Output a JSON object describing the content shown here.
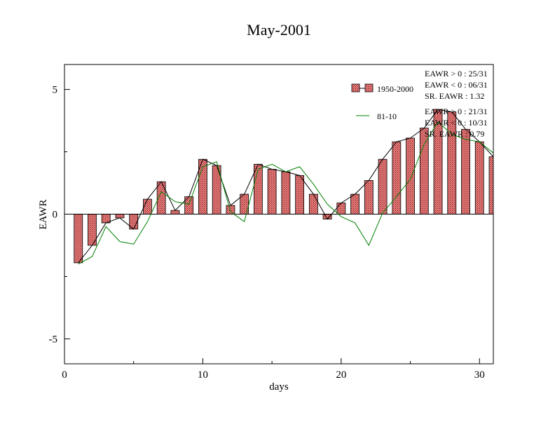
{
  "chart_data": {
    "type": "bar",
    "title": "May-2001",
    "xlabel": "days",
    "ylabel": "EAWR",
    "xlim": [
      0,
      31
    ],
    "ylim": [
      -6,
      6
    ],
    "x_ticks": [
      0,
      10,
      20,
      30
    ],
    "x_tick_labels": [
      "0",
      "10",
      "20",
      "30"
    ],
    "y_ticks": [
      -5,
      0,
      5
    ],
    "y_tick_labels": [
      "-5",
      "0",
      "5"
    ],
    "grid": false,
    "legend_position": "top-right",
    "colors": {
      "bar_fill": "#e88080",
      "bar_pattern": "#7a1010",
      "bar_line": "#000000",
      "line_81_10": "#008000",
      "axes": "#000000"
    },
    "days": [
      1,
      2,
      3,
      4,
      5,
      6,
      7,
      8,
      9,
      10,
      11,
      12,
      13,
      14,
      15,
      16,
      17,
      18,
      19,
      20,
      21,
      22,
      23,
      24,
      25,
      26,
      27,
      28,
      29,
      30,
      31
    ],
    "series": [
      {
        "name": "1950-2000",
        "style": "bar+line",
        "values": [
          -1.95,
          -1.25,
          -0.35,
          -0.15,
          -0.6,
          0.6,
          1.3,
          0.15,
          0.7,
          2.2,
          1.95,
          0.35,
          0.8,
          2.0,
          1.8,
          1.7,
          1.55,
          0.8,
          -0.2,
          0.45,
          0.8,
          1.35,
          2.2,
          2.9,
          3.05,
          3.45,
          4.2,
          4.1,
          3.4,
          2.9,
          2.3
        ]
      },
      {
        "name": "81-10",
        "style": "line",
        "values": [
          -2.0,
          -1.7,
          -0.5,
          -1.1,
          -1.2,
          -0.3,
          0.9,
          0.5,
          0.4,
          1.9,
          2.1,
          0.1,
          -0.3,
          1.8,
          2.0,
          1.7,
          1.9,
          1.2,
          0.4,
          -0.1,
          -0.35,
          -1.25,
          0.05,
          0.7,
          1.4,
          2.8,
          3.7,
          3.2,
          3.0,
          2.9,
          2.45
        ]
      }
    ],
    "annotations": {
      "group_1950_2000": [
        "EAWR > 0 : 25/31",
        "EAWR < 0 : 06/31",
        "SR. EAWR :  1.32"
      ],
      "group_81_10": [
        "EAWR > 0 : 21/31",
        "EAWR < 0 : 10/31",
        "SR. EAWR :  0.79"
      ]
    }
  }
}
